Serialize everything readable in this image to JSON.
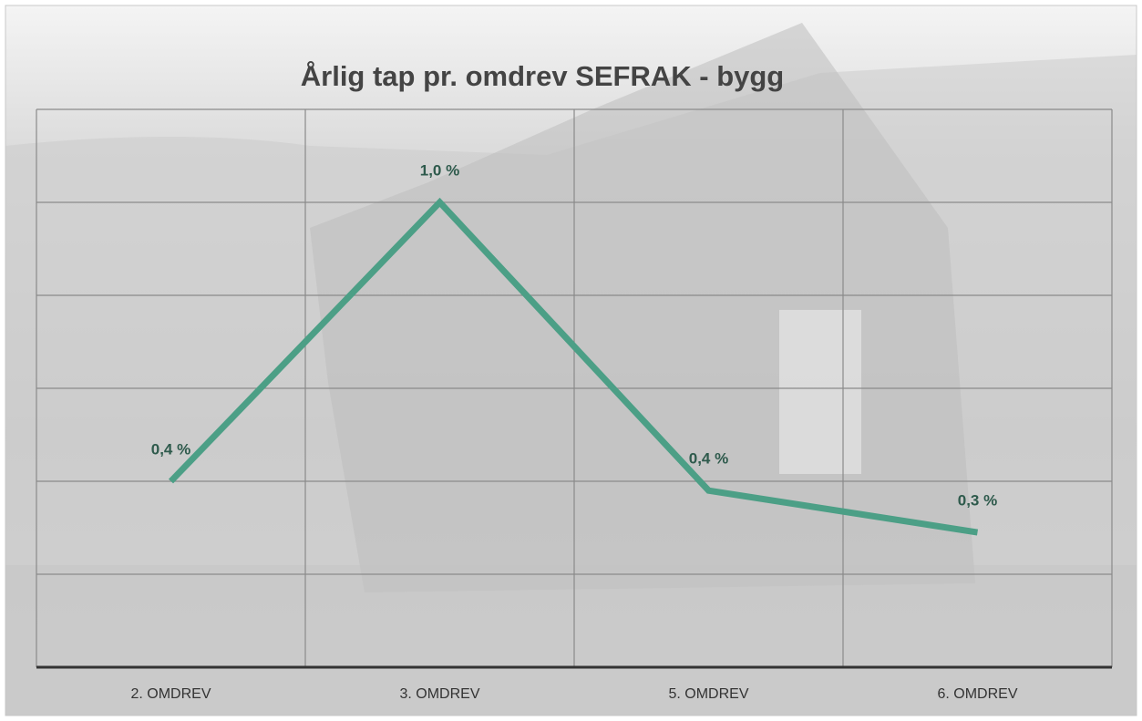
{
  "chart_data": {
    "type": "line",
    "title": "Årlig tap pr. omdrev SEFRAK - bygg",
    "categories": [
      "2. OMDREV",
      "3. OMDREV",
      "5. OMDREV",
      "6. OMDREV"
    ],
    "values": [
      0.4,
      1.0,
      0.38,
      0.29
    ],
    "value_labels": [
      "0,4 %",
      "1,0 %",
      "0,4 %",
      "0,3 %"
    ],
    "color": "#4c9f86",
    "ylim": [
      0,
      1.2
    ],
    "yticks": [
      0,
      0.2,
      0.4,
      0.6,
      0.8,
      1.0,
      1.2
    ],
    "grid": true
  }
}
